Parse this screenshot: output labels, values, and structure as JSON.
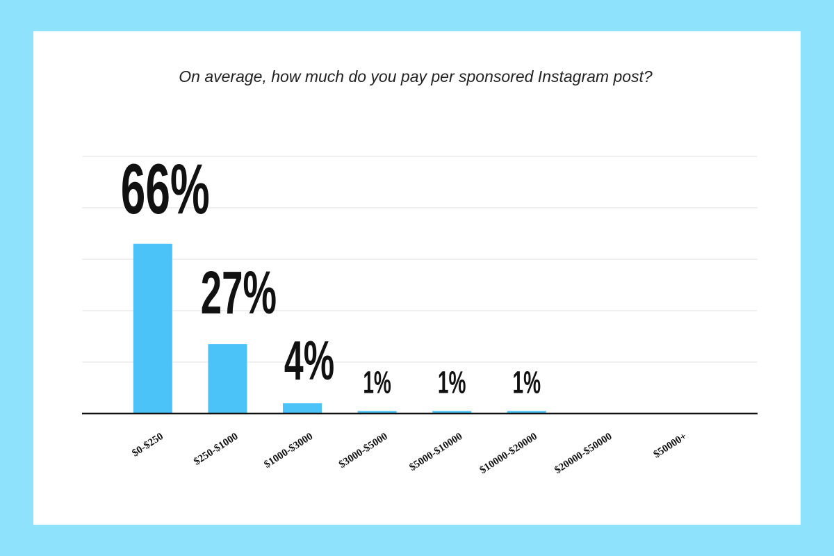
{
  "chart_data": {
    "type": "bar",
    "title": "On average, how much do you pay per sponsored Instagram post?",
    "categories": [
      "$0-$250",
      "$250-$1000",
      "$1000-$3000",
      "$3000-$5000",
      "$5000-$10000",
      "$10000-$20000",
      "$20000-$50000",
      "$50000+"
    ],
    "values": [
      66,
      27,
      4,
      1,
      1,
      1,
      null,
      null
    ],
    "value_labels": [
      "66%",
      "27%",
      "4%",
      "1%",
      "1%",
      "1%",
      null,
      null
    ],
    "color": "#4bc3f9",
    "ylim": [
      0,
      100
    ],
    "yticks": [
      0,
      20,
      40,
      60,
      80,
      100
    ],
    "grid": true
  }
}
